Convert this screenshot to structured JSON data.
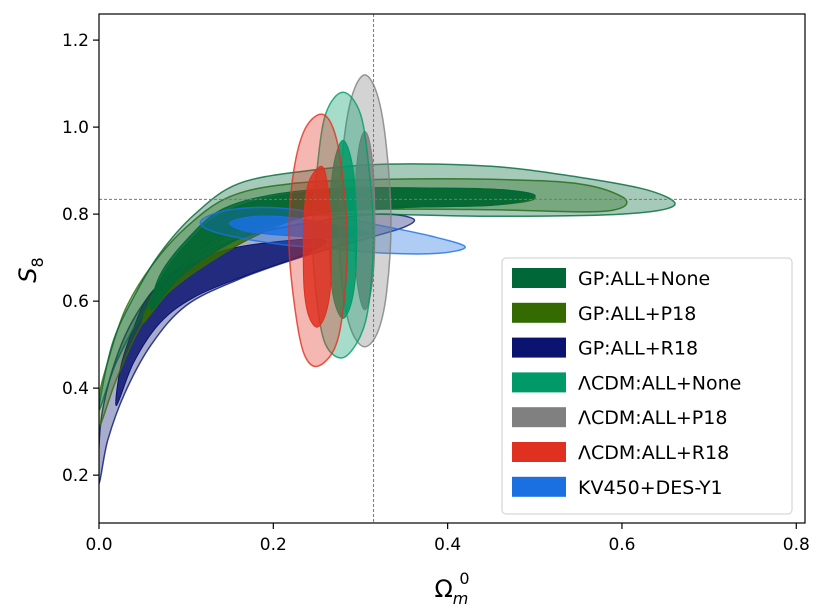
{
  "chart_data": {
    "type": "contour",
    "xlabel": "Ω",
    "xlabel_sub": "m",
    "xlabel_sup": "0",
    "ylabel": "S",
    "ylabel_sub": "8",
    "xlim": [
      0.0,
      0.81
    ],
    "ylim": [
      0.09,
      1.26
    ],
    "x_ticks": [
      {
        "value": 0.0,
        "label": "0.0"
      },
      {
        "value": 0.2,
        "label": "0.2"
      },
      {
        "value": 0.4,
        "label": "0.4"
      },
      {
        "value": 0.6,
        "label": "0.6"
      },
      {
        "value": 0.8,
        "label": "0.8"
      }
    ],
    "y_ticks": [
      {
        "value": 0.2,
        "label": "0.2"
      },
      {
        "value": 0.4,
        "label": "0.4"
      },
      {
        "value": 0.6,
        "label": "0.6"
      },
      {
        "value": 0.8,
        "label": "0.8"
      },
      {
        "value": 1.0,
        "label": "1.0"
      },
      {
        "value": 1.2,
        "label": "1.2"
      }
    ],
    "reference_lines": {
      "x": 0.315,
      "y": 0.834
    },
    "legend_position": "lower-right",
    "series": [
      {
        "name": "GP:ALL+R18",
        "color": "#0a1470",
        "contour_2sigma": [
          [
            0.0,
            0.18
          ],
          [
            0.01,
            0.28
          ],
          [
            0.03,
            0.39
          ],
          [
            0.06,
            0.5
          ],
          [
            0.1,
            0.59
          ],
          [
            0.16,
            0.65
          ],
          [
            0.23,
            0.7
          ],
          [
            0.3,
            0.74
          ],
          [
            0.35,
            0.77
          ],
          [
            0.36,
            0.79
          ],
          [
            0.32,
            0.8
          ],
          [
            0.24,
            0.78
          ],
          [
            0.17,
            0.75
          ],
          [
            0.11,
            0.7
          ],
          [
            0.07,
            0.64
          ],
          [
            0.04,
            0.56
          ],
          [
            0.02,
            0.47
          ],
          [
            0.005,
            0.36
          ],
          [
            0.0,
            0.27
          ]
        ],
        "contour_1sigma": [
          [
            0.02,
            0.36
          ],
          [
            0.04,
            0.46
          ],
          [
            0.07,
            0.55
          ],
          [
            0.11,
            0.61
          ],
          [
            0.17,
            0.66
          ],
          [
            0.24,
            0.71
          ],
          [
            0.26,
            0.74
          ],
          [
            0.22,
            0.74
          ],
          [
            0.15,
            0.72
          ],
          [
            0.1,
            0.68
          ],
          [
            0.06,
            0.62
          ],
          [
            0.04,
            0.54
          ],
          [
            0.025,
            0.45
          ]
        ]
      },
      {
        "name": "GP:ALL+P18",
        "color": "#346a00",
        "contour_2sigma": [
          [
            0.0,
            0.31
          ],
          [
            0.02,
            0.42
          ],
          [
            0.05,
            0.55
          ],
          [
            0.09,
            0.66
          ],
          [
            0.14,
            0.74
          ],
          [
            0.2,
            0.79
          ],
          [
            0.3,
            0.81
          ],
          [
            0.45,
            0.81
          ],
          [
            0.56,
            0.805
          ],
          [
            0.6,
            0.815
          ],
          [
            0.6,
            0.84
          ],
          [
            0.55,
            0.87
          ],
          [
            0.45,
            0.88
          ],
          [
            0.33,
            0.88
          ],
          [
            0.22,
            0.87
          ],
          [
            0.15,
            0.84
          ],
          [
            0.1,
            0.77
          ],
          [
            0.06,
            0.68
          ],
          [
            0.03,
            0.58
          ],
          [
            0.01,
            0.46
          ],
          [
            0.0,
            0.38
          ]
        ],
        "contour_1sigma": [
          [
            0.05,
            0.55
          ],
          [
            0.08,
            0.62
          ],
          [
            0.12,
            0.68
          ],
          [
            0.18,
            0.75
          ],
          [
            0.25,
            0.8
          ],
          [
            0.35,
            0.815
          ],
          [
            0.45,
            0.82
          ],
          [
            0.5,
            0.835
          ],
          [
            0.47,
            0.855
          ],
          [
            0.38,
            0.86
          ],
          [
            0.28,
            0.855
          ],
          [
            0.2,
            0.84
          ],
          [
            0.14,
            0.8
          ],
          [
            0.1,
            0.73
          ],
          [
            0.07,
            0.65
          ]
        ]
      },
      {
        "name": "GP:ALL+None",
        "color": "#006838",
        "contour_2sigma": [
          [
            0.0,
            0.35
          ],
          [
            0.02,
            0.46
          ],
          [
            0.05,
            0.57
          ],
          [
            0.09,
            0.67
          ],
          [
            0.14,
            0.75
          ],
          [
            0.2,
            0.79
          ],
          [
            0.3,
            0.8
          ],
          [
            0.45,
            0.795
          ],
          [
            0.6,
            0.8
          ],
          [
            0.66,
            0.82
          ],
          [
            0.63,
            0.855
          ],
          [
            0.55,
            0.885
          ],
          [
            0.45,
            0.91
          ],
          [
            0.33,
            0.915
          ],
          [
            0.24,
            0.9
          ],
          [
            0.16,
            0.87
          ],
          [
            0.11,
            0.8
          ],
          [
            0.07,
            0.71
          ],
          [
            0.04,
            0.61
          ],
          [
            0.015,
            0.5
          ]
        ],
        "contour_1sigma": [
          [
            0.06,
            0.58
          ],
          [
            0.09,
            0.65
          ],
          [
            0.13,
            0.71
          ],
          [
            0.18,
            0.76
          ],
          [
            0.25,
            0.8
          ],
          [
            0.35,
            0.815
          ],
          [
            0.45,
            0.82
          ],
          [
            0.5,
            0.84
          ],
          [
            0.47,
            0.855
          ],
          [
            0.38,
            0.86
          ],
          [
            0.28,
            0.86
          ],
          [
            0.2,
            0.845
          ],
          [
            0.14,
            0.81
          ],
          [
            0.1,
            0.74
          ],
          [
            0.07,
            0.66
          ]
        ]
      },
      {
        "name": "KV450+DES-Y1",
        "color": "#1a70e0",
        "contour_2sigma": [
          [
            0.12,
            0.79
          ],
          [
            0.15,
            0.81
          ],
          [
            0.2,
            0.815
          ],
          [
            0.26,
            0.8
          ],
          [
            0.32,
            0.775
          ],
          [
            0.38,
            0.75
          ],
          [
            0.42,
            0.725
          ],
          [
            0.39,
            0.71
          ],
          [
            0.33,
            0.71
          ],
          [
            0.27,
            0.72
          ],
          [
            0.21,
            0.73
          ],
          [
            0.15,
            0.75
          ],
          [
            0.12,
            0.77
          ]
        ],
        "contour_1sigma": [
          [
            0.15,
            0.78
          ],
          [
            0.18,
            0.795
          ],
          [
            0.23,
            0.79
          ],
          [
            0.28,
            0.77
          ],
          [
            0.31,
            0.755
          ],
          [
            0.27,
            0.745
          ],
          [
            0.22,
            0.75
          ],
          [
            0.17,
            0.76
          ]
        ]
      },
      {
        "name": "ΛCDM:ALL+P18",
        "color": "#808080",
        "contour_2sigma": [
          [
            0.305,
            1.12
          ],
          [
            0.32,
            1.07
          ],
          [
            0.33,
            0.95
          ],
          [
            0.335,
            0.78
          ],
          [
            0.33,
            0.62
          ],
          [
            0.32,
            0.53
          ],
          [
            0.305,
            0.495
          ],
          [
            0.29,
            0.53
          ],
          [
            0.28,
            0.62
          ],
          [
            0.275,
            0.78
          ],
          [
            0.28,
            0.95
          ],
          [
            0.29,
            1.07
          ]
        ],
        "contour_1sigma": [
          [
            0.305,
            0.99
          ],
          [
            0.312,
            0.95
          ],
          [
            0.316,
            0.85
          ],
          [
            0.316,
            0.7
          ],
          [
            0.312,
            0.62
          ],
          [
            0.305,
            0.58
          ],
          [
            0.298,
            0.62
          ],
          [
            0.294,
            0.7
          ],
          [
            0.294,
            0.85
          ],
          [
            0.298,
            0.95
          ]
        ]
      },
      {
        "name": "ΛCDM:ALL+None",
        "color": "#009a68",
        "contour_2sigma": [
          [
            0.28,
            1.08
          ],
          [
            0.3,
            1.03
          ],
          [
            0.31,
            0.9
          ],
          [
            0.315,
            0.75
          ],
          [
            0.31,
            0.6
          ],
          [
            0.3,
            0.52
          ],
          [
            0.28,
            0.47
          ],
          [
            0.26,
            0.5
          ],
          [
            0.25,
            0.6
          ],
          [
            0.245,
            0.75
          ],
          [
            0.25,
            0.9
          ],
          [
            0.26,
            1.03
          ]
        ],
        "contour_1sigma": [
          [
            0.28,
            0.97
          ],
          [
            0.29,
            0.92
          ],
          [
            0.295,
            0.82
          ],
          [
            0.295,
            0.68
          ],
          [
            0.29,
            0.6
          ],
          [
            0.28,
            0.56
          ],
          [
            0.27,
            0.6
          ],
          [
            0.265,
            0.68
          ],
          [
            0.265,
            0.82
          ],
          [
            0.27,
            0.92
          ]
        ]
      },
      {
        "name": "ΛCDM:ALL+R18",
        "color": "#e03020",
        "contour_2sigma": [
          [
            0.255,
            1.03
          ],
          [
            0.27,
            0.99
          ],
          [
            0.28,
            0.88
          ],
          [
            0.285,
            0.73
          ],
          [
            0.28,
            0.58
          ],
          [
            0.27,
            0.49
          ],
          [
            0.25,
            0.45
          ],
          [
            0.235,
            0.48
          ],
          [
            0.225,
            0.58
          ],
          [
            0.218,
            0.73
          ],
          [
            0.222,
            0.88
          ],
          [
            0.235,
            0.99
          ]
        ],
        "contour_1sigma": [
          [
            0.255,
            0.91
          ],
          [
            0.262,
            0.87
          ],
          [
            0.266,
            0.78
          ],
          [
            0.266,
            0.64
          ],
          [
            0.26,
            0.57
          ],
          [
            0.25,
            0.54
          ],
          [
            0.24,
            0.57
          ],
          [
            0.235,
            0.64
          ],
          [
            0.235,
            0.78
          ],
          [
            0.24,
            0.87
          ]
        ]
      }
    ],
    "legend": [
      {
        "label": "GP:ALL+None",
        "color": "#006838"
      },
      {
        "label": "GP:ALL+P18",
        "color": "#346a00"
      },
      {
        "label": "GP:ALL+R18",
        "color": "#0a1470"
      },
      {
        "label": "ΛCDM:ALL+None",
        "color": "#009a68"
      },
      {
        "label": "ΛCDM:ALL+P18",
        "color": "#808080"
      },
      {
        "label": "ΛCDM:ALL+R18",
        "color": "#e03020"
      },
      {
        "label": "KV450+DES-Y1",
        "color": "#1a70e0"
      }
    ]
  }
}
